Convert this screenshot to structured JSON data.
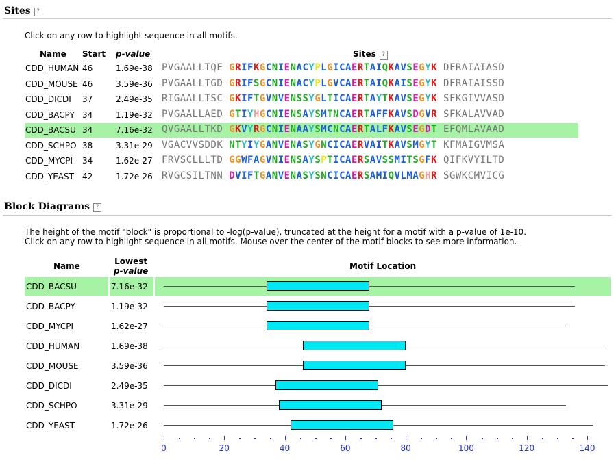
{
  "sites_section": {
    "title": "Sites",
    "note": "Click on any row to highlight sequence in all motifs.",
    "headers": {
      "name": "Name",
      "start": "Start",
      "pvalue": "p-value",
      "sites": "Sites"
    },
    "rows": [
      {
        "name": "CDD_HUMAN",
        "start": "46",
        "pvalue": "1.69e-38",
        "left": "PVGAALLTQE",
        "motif": "GRIFKGCNIENACYPLGICAERTAIQKAVSEGYK",
        "right": "DFRAIAIASD",
        "highlight": false
      },
      {
        "name": "CDD_MOUSE",
        "start": "46",
        "pvalue": "3.59e-36",
        "left": "PVGAALLTGD",
        "motif": "GRIFSGCNIENACYPLGVCAERTAIQKAISEGYK",
        "right": "DFRAIAISSD",
        "highlight": false
      },
      {
        "name": "CDD_DICDI",
        "start": "37",
        "pvalue": "2.49e-35",
        "left": "RIGAALLTSC",
        "motif": "GKIFTGVNVENSSYGLTICAERTAYTKAVSEGYK",
        "right": "SFKGIVVASD",
        "highlight": false
      },
      {
        "name": "CDD_BACPY",
        "start": "34",
        "pvalue": "1.19e-32",
        "left": "PVGAALLAED",
        "motif": "GTIYHGCNIENSAYSMTNCAERTAFFKAVSDGVR",
        "right": "SFKALAVVAD",
        "highlight": false
      },
      {
        "name": "CDD_BACSU",
        "start": "34",
        "pvalue": "7.16e-32",
        "left": "QVGAALLTKD",
        "motif": "GKVYRGCNIENAAYSMCNCAERTALFKAVSEGDT",
        "right": "EFQMLAVAAD",
        "highlight": true
      },
      {
        "name": "CDD_SCHPO",
        "start": "38",
        "pvalue": "3.31e-29",
        "left": "VGACVVSDDK",
        "motif": "NTYIYGANVENASYGNCICAERVAITKAVSMGYT",
        "right": "KFMAIGVMSA",
        "highlight": false
      },
      {
        "name": "CDD_MYCPI",
        "start": "34",
        "pvalue": "1.62e-27",
        "left": "FRVSCLLLTD",
        "motif": "GGWFAGVNIENSAYSPTICAERSAVSSMITSGFK",
        "right": "QIFKVYILTD",
        "highlight": false
      },
      {
        "name": "CDD_YEAST",
        "start": "42",
        "pvalue": "1.72e-26",
        "left": "RVGCSILTNN",
        "motif": "DVIFTGANVENASYSNCICAERSAMIQVLMAGHR",
        "right": "SGWKCMVICG",
        "highlight": false
      }
    ]
  },
  "block_section": {
    "title": "Block Diagrams",
    "note_line1": "The height of the motif \"block\" is proportional to -log(p-value), truncated at the height for a motif with a p-value of 1e-10.",
    "note_line2": "Click on any row to highlight sequence in all motifs. Mouse over the center of the motif blocks to see more information.",
    "headers": {
      "name": "Name",
      "lowest": "Lowest",
      "pvalue": "p-value",
      "location": "Motif Location"
    },
    "rows": [
      {
        "name": "CDD_BACSU",
        "pvalue": "7.16e-32",
        "seq_length": 136,
        "motif_start": 34,
        "motif_end": 68,
        "highlight": true
      },
      {
        "name": "CDD_BACPY",
        "pvalue": "1.19e-32",
        "seq_length": 136,
        "motif_start": 34,
        "motif_end": 68,
        "highlight": false
      },
      {
        "name": "CDD_MYCPI",
        "pvalue": "1.62e-27",
        "seq_length": 133,
        "motif_start": 34,
        "motif_end": 68,
        "highlight": false
      },
      {
        "name": "CDD_HUMAN",
        "pvalue": "1.69e-38",
        "seq_length": 146,
        "motif_start": 46,
        "motif_end": 80,
        "highlight": false
      },
      {
        "name": "CDD_MOUSE",
        "pvalue": "3.59e-36",
        "seq_length": 146,
        "motif_start": 46,
        "motif_end": 80,
        "highlight": false
      },
      {
        "name": "CDD_DICDI",
        "pvalue": "2.49e-35",
        "seq_length": 147,
        "motif_start": 37,
        "motif_end": 71,
        "highlight": false
      },
      {
        "name": "CDD_SCHPO",
        "pvalue": "3.31e-29",
        "seq_length": 133,
        "motif_start": 38,
        "motif_end": 72,
        "highlight": false
      },
      {
        "name": "CDD_YEAST",
        "pvalue": "1.72e-26",
        "seq_length": 142,
        "motif_start": 42,
        "motif_end": 76,
        "highlight": false
      }
    ],
    "axis": {
      "min": 0,
      "max": 140,
      "ticks": [
        "0",
        "20",
        "40",
        "60",
        "80",
        "100",
        "120",
        "140"
      ]
    }
  },
  "colors": {
    "highlight_row": "#a6f3a6",
    "motif_block": "#00e8f4",
    "axis": "#2233cc",
    "flank": "#777777",
    "residues": {
      "A": "#1a5fd8",
      "C": "#1a5fd8",
      "I": "#1a5fd8",
      "L": "#1a5fd8",
      "M": "#1a5fd8",
      "V": "#1a5fd8",
      "W": "#1a5fd8",
      "F": "#1a5fd8",
      "N": "#22aa22",
      "Q": "#22aa22",
      "S": "#22aa22",
      "T": "#22aa22",
      "D": "#d81ab0",
      "E": "#d81ab0",
      "K": "#e01818",
      "R": "#e01818",
      "G": "#f09020",
      "H": "#f0a0a0",
      "P": "#e8e820",
      "Y": "#2ab8b8"
    }
  }
}
